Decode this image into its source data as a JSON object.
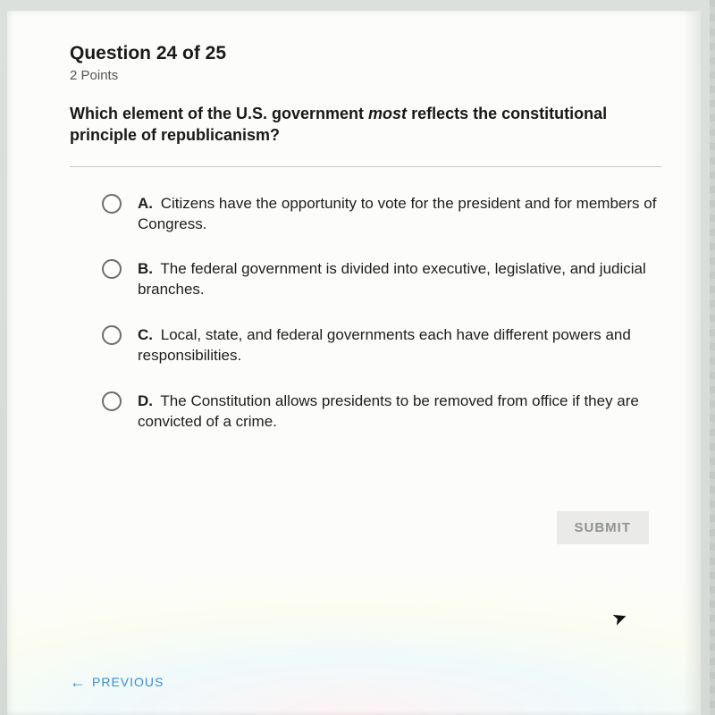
{
  "header": {
    "question_label": "Question 24 of 25",
    "points": "2 Points"
  },
  "question": {
    "text_before": "Which element of the U.S. government ",
    "text_emph": "most",
    "text_after": " reflects the constitutional principle of republicanism?"
  },
  "options": [
    {
      "letter": "A.",
      "text": "Citizens have the opportunity to vote for the president and for members of Congress."
    },
    {
      "letter": "B.",
      "text": "The federal government is divided into executive, legislative, and judicial branches."
    },
    {
      "letter": "C.",
      "text": "Local, state, and federal governments each have different powers and responsibilities."
    },
    {
      "letter": "D.",
      "text": "The Constitution allows presidents to be removed from office if they are convicted of a crime."
    }
  ],
  "buttons": {
    "submit": "SUBMIT",
    "previous": "PREVIOUS",
    "previous_arrow": "←"
  },
  "colors": {
    "page_bg": "#d8dcd8",
    "panel_bg": "#fcfdfb",
    "text_primary": "#1a1a1a",
    "text_secondary": "#555555",
    "radio_border": "#6b6f6b",
    "submit_bg": "#e6e7e4",
    "submit_text": "#8f948f",
    "link": "#3b8fd4",
    "divider": "#c6c8c6"
  }
}
